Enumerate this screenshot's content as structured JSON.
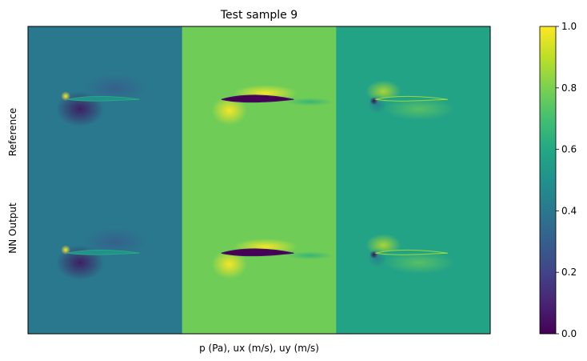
{
  "chart_data": {
    "type": "heatmap",
    "title": "Test sample 9",
    "xlabel": "p (Pa), ux (m/s), uy (m/s)",
    "row_labels": [
      "Reference",
      "NN Output"
    ],
    "fields": [
      {
        "name": "p",
        "background": 0.4
      },
      {
        "name": "ux",
        "background": 0.78
      },
      {
        "name": "uy",
        "background": 0.58
      }
    ],
    "colorbar": {
      "range": [
        0.0,
        1.0
      ],
      "ticks": [
        0.0,
        0.2,
        0.4,
        0.6,
        0.8,
        1.0
      ],
      "tick_labels": [
        "0.0",
        "0.2",
        "0.4",
        "0.6",
        "0.8",
        "1.0"
      ],
      "colormap": "viridis"
    },
    "grid": false
  }
}
